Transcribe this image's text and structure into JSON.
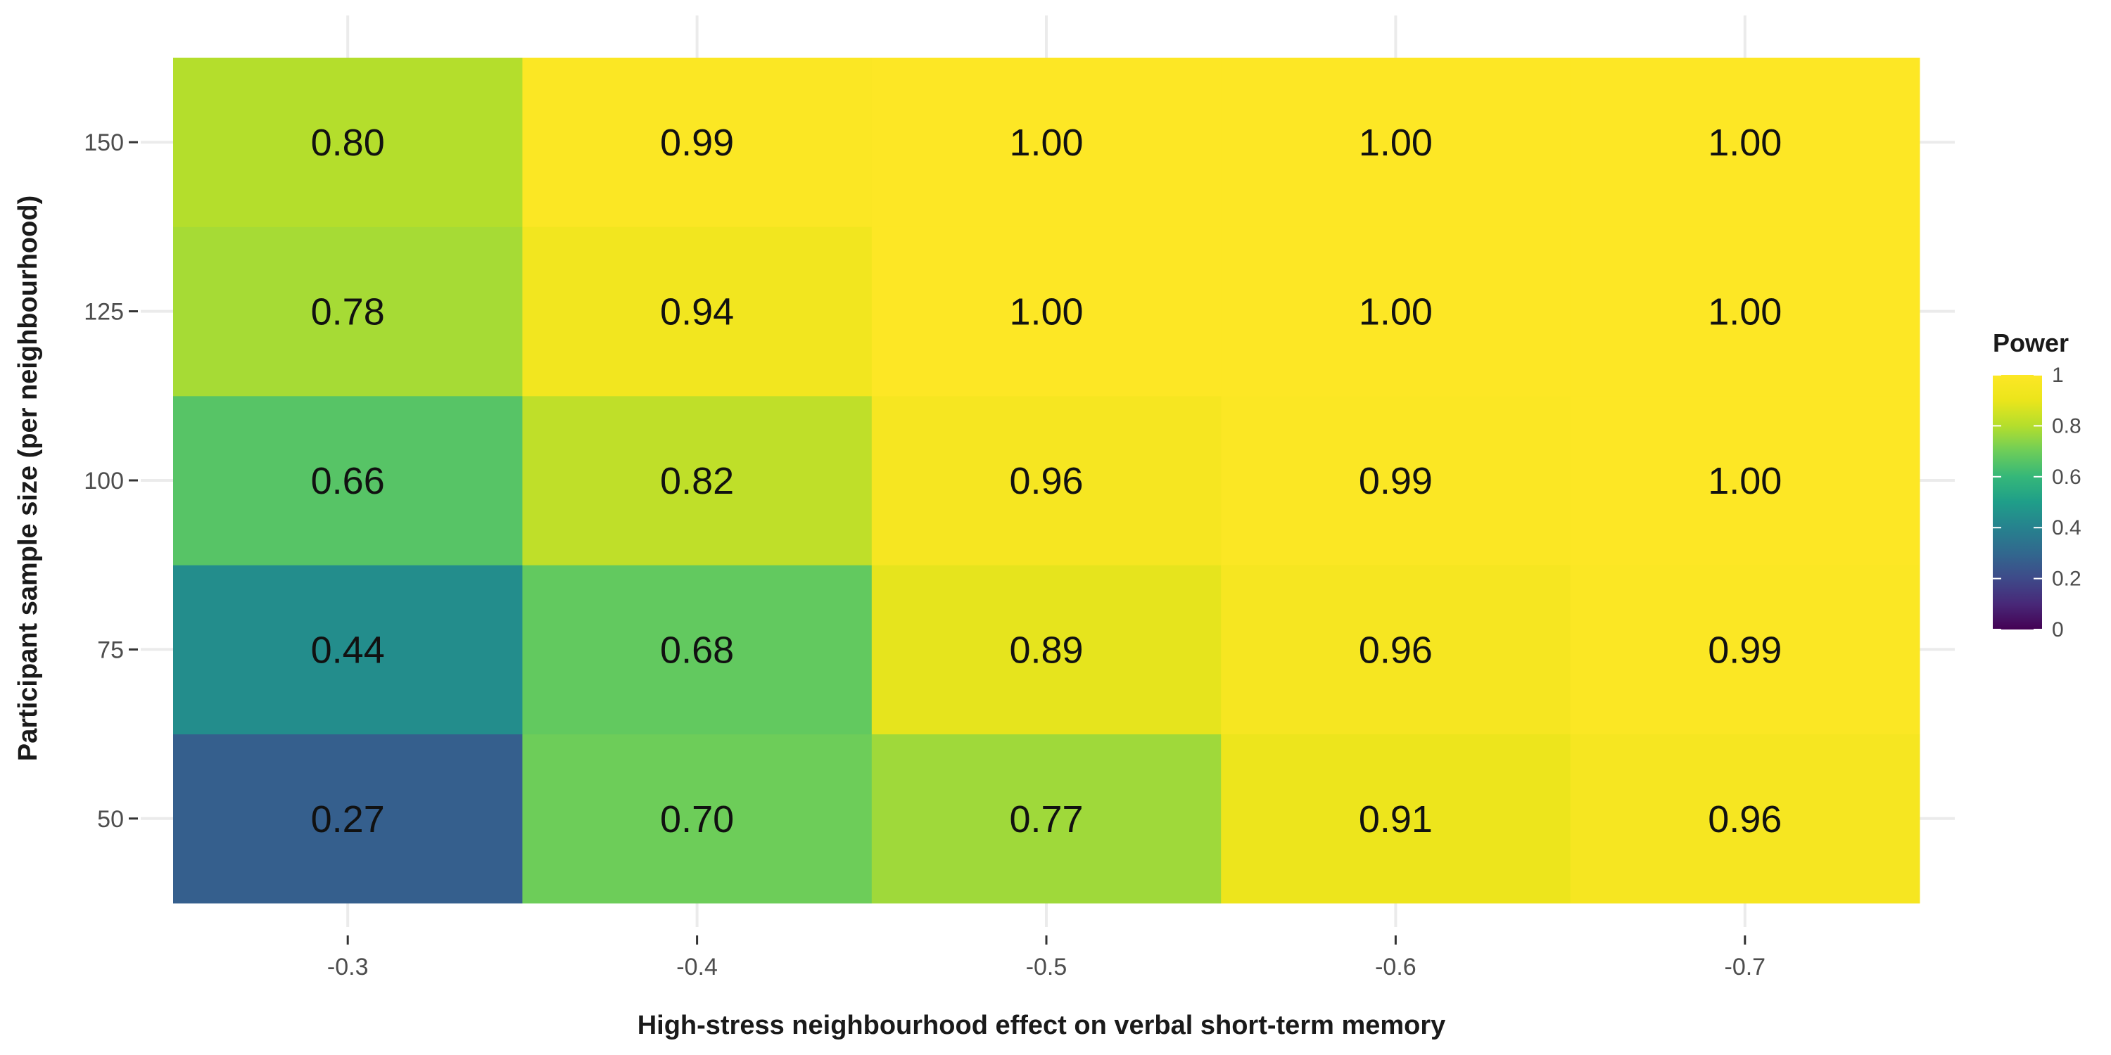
{
  "chart_data": {
    "type": "heatmap",
    "title": "",
    "xlabel": "High-stress neighbourhood effect on verbal short-term memory",
    "ylabel": "Participant sample size (per neighbourhood)",
    "x_categories": [
      "-0.3",
      "-0.4",
      "-0.5",
      "-0.6",
      "-0.7"
    ],
    "y_categories": [
      "50",
      "75",
      "100",
      "125",
      "150"
    ],
    "values": [
      [
        0.27,
        0.7,
        0.77,
        0.91,
        0.96
      ],
      [
        0.44,
        0.68,
        0.89,
        0.96,
        0.99
      ],
      [
        0.66,
        0.82,
        0.96,
        0.99,
        1.0
      ],
      [
        0.78,
        0.94,
        1.0,
        1.0,
        1.0
      ],
      [
        0.8,
        0.99,
        1.0,
        1.0,
        1.0
      ]
    ],
    "value_labels": [
      [
        "0.27",
        "0.70",
        "0.77",
        "0.91",
        "0.96"
      ],
      [
        "0.44",
        "0.68",
        "0.89",
        "0.96",
        "0.99"
      ],
      [
        "0.66",
        "0.82",
        "0.96",
        "0.99",
        "1.00"
      ],
      [
        "0.78",
        "0.94",
        "1.00",
        "1.00",
        "1.00"
      ],
      [
        "0.80",
        "0.99",
        "1.00",
        "1.00",
        "1.00"
      ]
    ],
    "legend": {
      "title": "Power",
      "position": "right",
      "range": [
        0,
        1
      ],
      "tick_labels": [
        "0",
        "0.2",
        "0.4",
        "0.6",
        "0.8",
        "1"
      ],
      "tick_values": [
        0,
        0.2,
        0.4,
        0.6,
        0.8,
        1
      ],
      "colormap": "viridis"
    },
    "grid": true
  }
}
